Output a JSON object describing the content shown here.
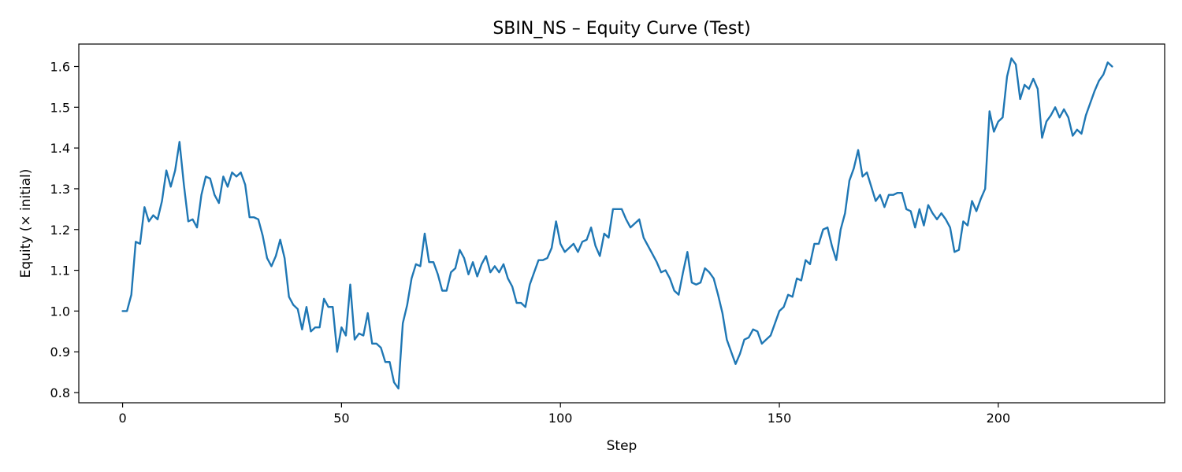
{
  "chart_data": {
    "type": "line",
    "title": "SBIN_NS – Equity Curve (Test)",
    "xlabel": "Step",
    "ylabel": "Equity (× initial)",
    "xlim": [
      -10,
      238
    ],
    "ylim": [
      0.775,
      1.655
    ],
    "x_ticks": [
      0,
      50,
      100,
      150,
      200
    ],
    "y_ticks": [
      0.8,
      0.9,
      1.0,
      1.1,
      1.2,
      1.3,
      1.4,
      1.5,
      1.6
    ],
    "grid": false,
    "legend": "none",
    "series": [
      {
        "color": "#1f77b4",
        "x": [
          0,
          1,
          2,
          3,
          4,
          5,
          6,
          7,
          8,
          9,
          10,
          11,
          12,
          13,
          14,
          15,
          16,
          17,
          18,
          19,
          20,
          21,
          22,
          23,
          24,
          25,
          26,
          27,
          28,
          29,
          30,
          31,
          32,
          33,
          34,
          35,
          36,
          37,
          38,
          39,
          40,
          41,
          42,
          43,
          44,
          45,
          46,
          47,
          48,
          49,
          50,
          51,
          52,
          53,
          54,
          55,
          56,
          57,
          58,
          59,
          60,
          61,
          62,
          63,
          64,
          65,
          66,
          67,
          68,
          69,
          70,
          71,
          72,
          73,
          74,
          75,
          76,
          77,
          78,
          79,
          80,
          81,
          82,
          83,
          84,
          85,
          86,
          87,
          88,
          89,
          90,
          91,
          92,
          93,
          94,
          95,
          96,
          97,
          98,
          99,
          100,
          101,
          102,
          103,
          104,
          105,
          106,
          107,
          108,
          109,
          110,
          111,
          112,
          113,
          114,
          115,
          116,
          117,
          118,
          119,
          120,
          121,
          122,
          123,
          124,
          125,
          126,
          127,
          128,
          129,
          130,
          131,
          132,
          133,
          134,
          135,
          136,
          137,
          138,
          139,
          140,
          141,
          142,
          143,
          144,
          145,
          146,
          147,
          148,
          149,
          150,
          151,
          152,
          153,
          154,
          155,
          156,
          157,
          158,
          159,
          160,
          161,
          162,
          163,
          164,
          165,
          166,
          167,
          168,
          169,
          170,
          171,
          172,
          173,
          174,
          175,
          176,
          177,
          178,
          179,
          180,
          181,
          182,
          183,
          184,
          185,
          186,
          187,
          188,
          189,
          190,
          191,
          192,
          193,
          194,
          195,
          196,
          197,
          198,
          199,
          200,
          201,
          202,
          203,
          204,
          205,
          206,
          207,
          208,
          209,
          210,
          211,
          212,
          213,
          214,
          215,
          216,
          217,
          218,
          219,
          220,
          221,
          222,
          223,
          224,
          225,
          226
        ],
        "y": [
          1.0,
          1.0,
          1.04,
          1.17,
          1.165,
          1.255,
          1.22,
          1.235,
          1.225,
          1.27,
          1.345,
          1.305,
          1.345,
          1.415,
          1.31,
          1.22,
          1.225,
          1.205,
          1.285,
          1.33,
          1.325,
          1.285,
          1.265,
          1.33,
          1.305,
          1.34,
          1.33,
          1.34,
          1.31,
          1.23,
          1.23,
          1.225,
          1.185,
          1.13,
          1.11,
          1.135,
          1.175,
          1.13,
          1.035,
          1.015,
          1.005,
          0.955,
          1.01,
          0.95,
          0.96,
          0.96,
          1.03,
          1.01,
          1.01,
          0.9,
          0.96,
          0.94,
          1.065,
          0.93,
          0.945,
          0.94,
          0.995,
          0.92,
          0.92,
          0.91,
          0.875,
          0.875,
          0.825,
          0.81,
          0.97,
          1.015,
          1.08,
          1.115,
          1.11,
          1.19,
          1.12,
          1.12,
          1.09,
          1.05,
          1.05,
          1.095,
          1.105,
          1.15,
          1.13,
          1.09,
          1.12,
          1.085,
          1.115,
          1.135,
          1.095,
          1.11,
          1.095,
          1.115,
          1.08,
          1.06,
          1.02,
          1.02,
          1.01,
          1.065,
          1.095,
          1.125,
          1.125,
          1.13,
          1.155,
          1.22,
          1.165,
          1.145,
          1.155,
          1.165,
          1.145,
          1.17,
          1.175,
          1.205,
          1.16,
          1.135,
          1.19,
          1.18,
          1.25,
          1.25,
          1.25,
          1.225,
          1.205,
          1.215,
          1.225,
          1.18,
          1.16,
          1.14,
          1.12,
          1.095,
          1.1,
          1.08,
          1.05,
          1.04,
          1.095,
          1.145,
          1.07,
          1.065,
          1.07,
          1.105,
          1.095,
          1.08,
          1.04,
          0.995,
          0.93,
          0.9,
          0.87,
          0.895,
          0.93,
          0.935,
          0.955,
          0.95,
          0.92,
          0.93,
          0.94,
          0.97,
          1.0,
          1.01,
          1.04,
          1.035,
          1.08,
          1.075,
          1.125,
          1.115,
          1.165,
          1.165,
          1.2,
          1.205,
          1.16,
          1.125,
          1.2,
          1.24,
          1.32,
          1.35,
          1.395,
          1.33,
          1.34,
          1.305,
          1.27,
          1.285,
          1.255,
          1.285,
          1.285,
          1.29,
          1.29,
          1.25,
          1.245,
          1.205,
          1.25,
          1.21,
          1.26,
          1.24,
          1.225,
          1.24,
          1.225,
          1.205,
          1.145,
          1.15,
          1.22,
          1.21,
          1.27,
          1.245,
          1.275,
          1.3,
          1.49,
          1.44,
          1.465,
          1.475,
          1.575,
          1.62,
          1.605,
          1.52,
          1.555,
          1.545,
          1.57,
          1.545,
          1.425,
          1.465,
          1.48,
          1.5,
          1.475,
          1.495,
          1.475,
          1.43,
          1.445,
          1.435,
          1.48,
          1.51,
          1.54,
          1.565,
          1.58,
          1.61,
          1.6
        ]
      }
    ]
  }
}
